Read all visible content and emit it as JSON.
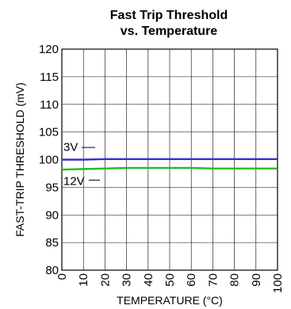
{
  "chart_data": {
    "type": "line",
    "title_line1": "Fast Trip Threshold",
    "title_line2": "vs. Temperature",
    "xlabel": "TEMPERATURE (°C)",
    "ylabel": "FAST-TRIP THRESHOLD (mV)",
    "xlim": [
      0,
      100
    ],
    "ylim": [
      80,
      120
    ],
    "x_ticks": [
      "0",
      "10",
      "20",
      "30",
      "40",
      "50",
      "60",
      "70",
      "80",
      "90",
      "100"
    ],
    "y_ticks": [
      "80",
      "85",
      "90",
      "95",
      "100",
      "105",
      "110",
      "115",
      "120"
    ],
    "grid": true,
    "series": [
      {
        "name": "3V",
        "color": "#3333cc",
        "x": [
          0,
          10,
          20,
          30,
          40,
          50,
          60,
          70,
          80,
          90,
          100
        ],
        "y": [
          100.0,
          100.0,
          100.1,
          100.1,
          100.1,
          100.1,
          100.1,
          100.1,
          100.1,
          100.1,
          100.1
        ]
      },
      {
        "name": "12V",
        "color": "#22bb22",
        "x": [
          0,
          10,
          20,
          30,
          40,
          50,
          60,
          70,
          80,
          90,
          100
        ],
        "y": [
          98.2,
          98.3,
          98.4,
          98.5,
          98.5,
          98.5,
          98.5,
          98.4,
          98.4,
          98.4,
          98.4
        ]
      }
    ]
  }
}
